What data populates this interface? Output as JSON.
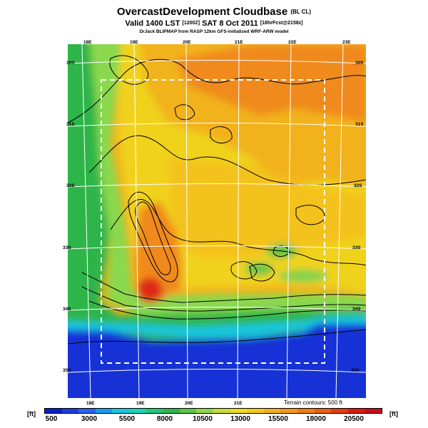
{
  "title": {
    "main": "OvercastDevelopment Cloudbase",
    "main_suffix": "(BL CL)",
    "valid_prefix": "Valid 1400 LST",
    "valid_small1": "[1200Z]",
    "valid_date": "SAT 8 Oct 2011",
    "valid_small2": "[18hrFcst@2158z]",
    "credit": "DrJack BLIPMAP from RASP 12km GFS-initialized WRF-ARW model"
  },
  "map": {
    "lon_labels": [
      "18E",
      "19E",
      "20E",
      "21E",
      "22E",
      "23E"
    ],
    "lat_labels": [
      "30S",
      "31S",
      "32S",
      "33S",
      "34S",
      "35S"
    ],
    "terrain_note": "Terrain contours: 500 ft",
    "colors": {
      "ocean": "#1233d6",
      "coastal_cyan": "#19c7e0",
      "green": "#2fb54a",
      "light_green": "#7fd34e",
      "yellow": "#f0d21a",
      "gold": "#f2b21a",
      "orange": "#f08a1c",
      "red": "#e02a12"
    }
  },
  "colorbar": {
    "unit_left": "[ft]",
    "unit_right": "[ft]",
    "ticks": [
      "500",
      "3000",
      "5500",
      "8000",
      "10500",
      "13000",
      "15500",
      "18000",
      "20500"
    ],
    "colors": [
      "#0a1fc8",
      "#1e3cdc",
      "#2a63ef",
      "#1d9bee",
      "#19c7e0",
      "#1fd5b0",
      "#23c777",
      "#2fb54a",
      "#5fc64a",
      "#93d64b",
      "#c5de3a",
      "#eedc22",
      "#f4c81f",
      "#f3b11e",
      "#f2981d",
      "#ef7d1f",
      "#eb5f1a",
      "#e23e14",
      "#d91c12",
      "#c4101c"
    ]
  }
}
